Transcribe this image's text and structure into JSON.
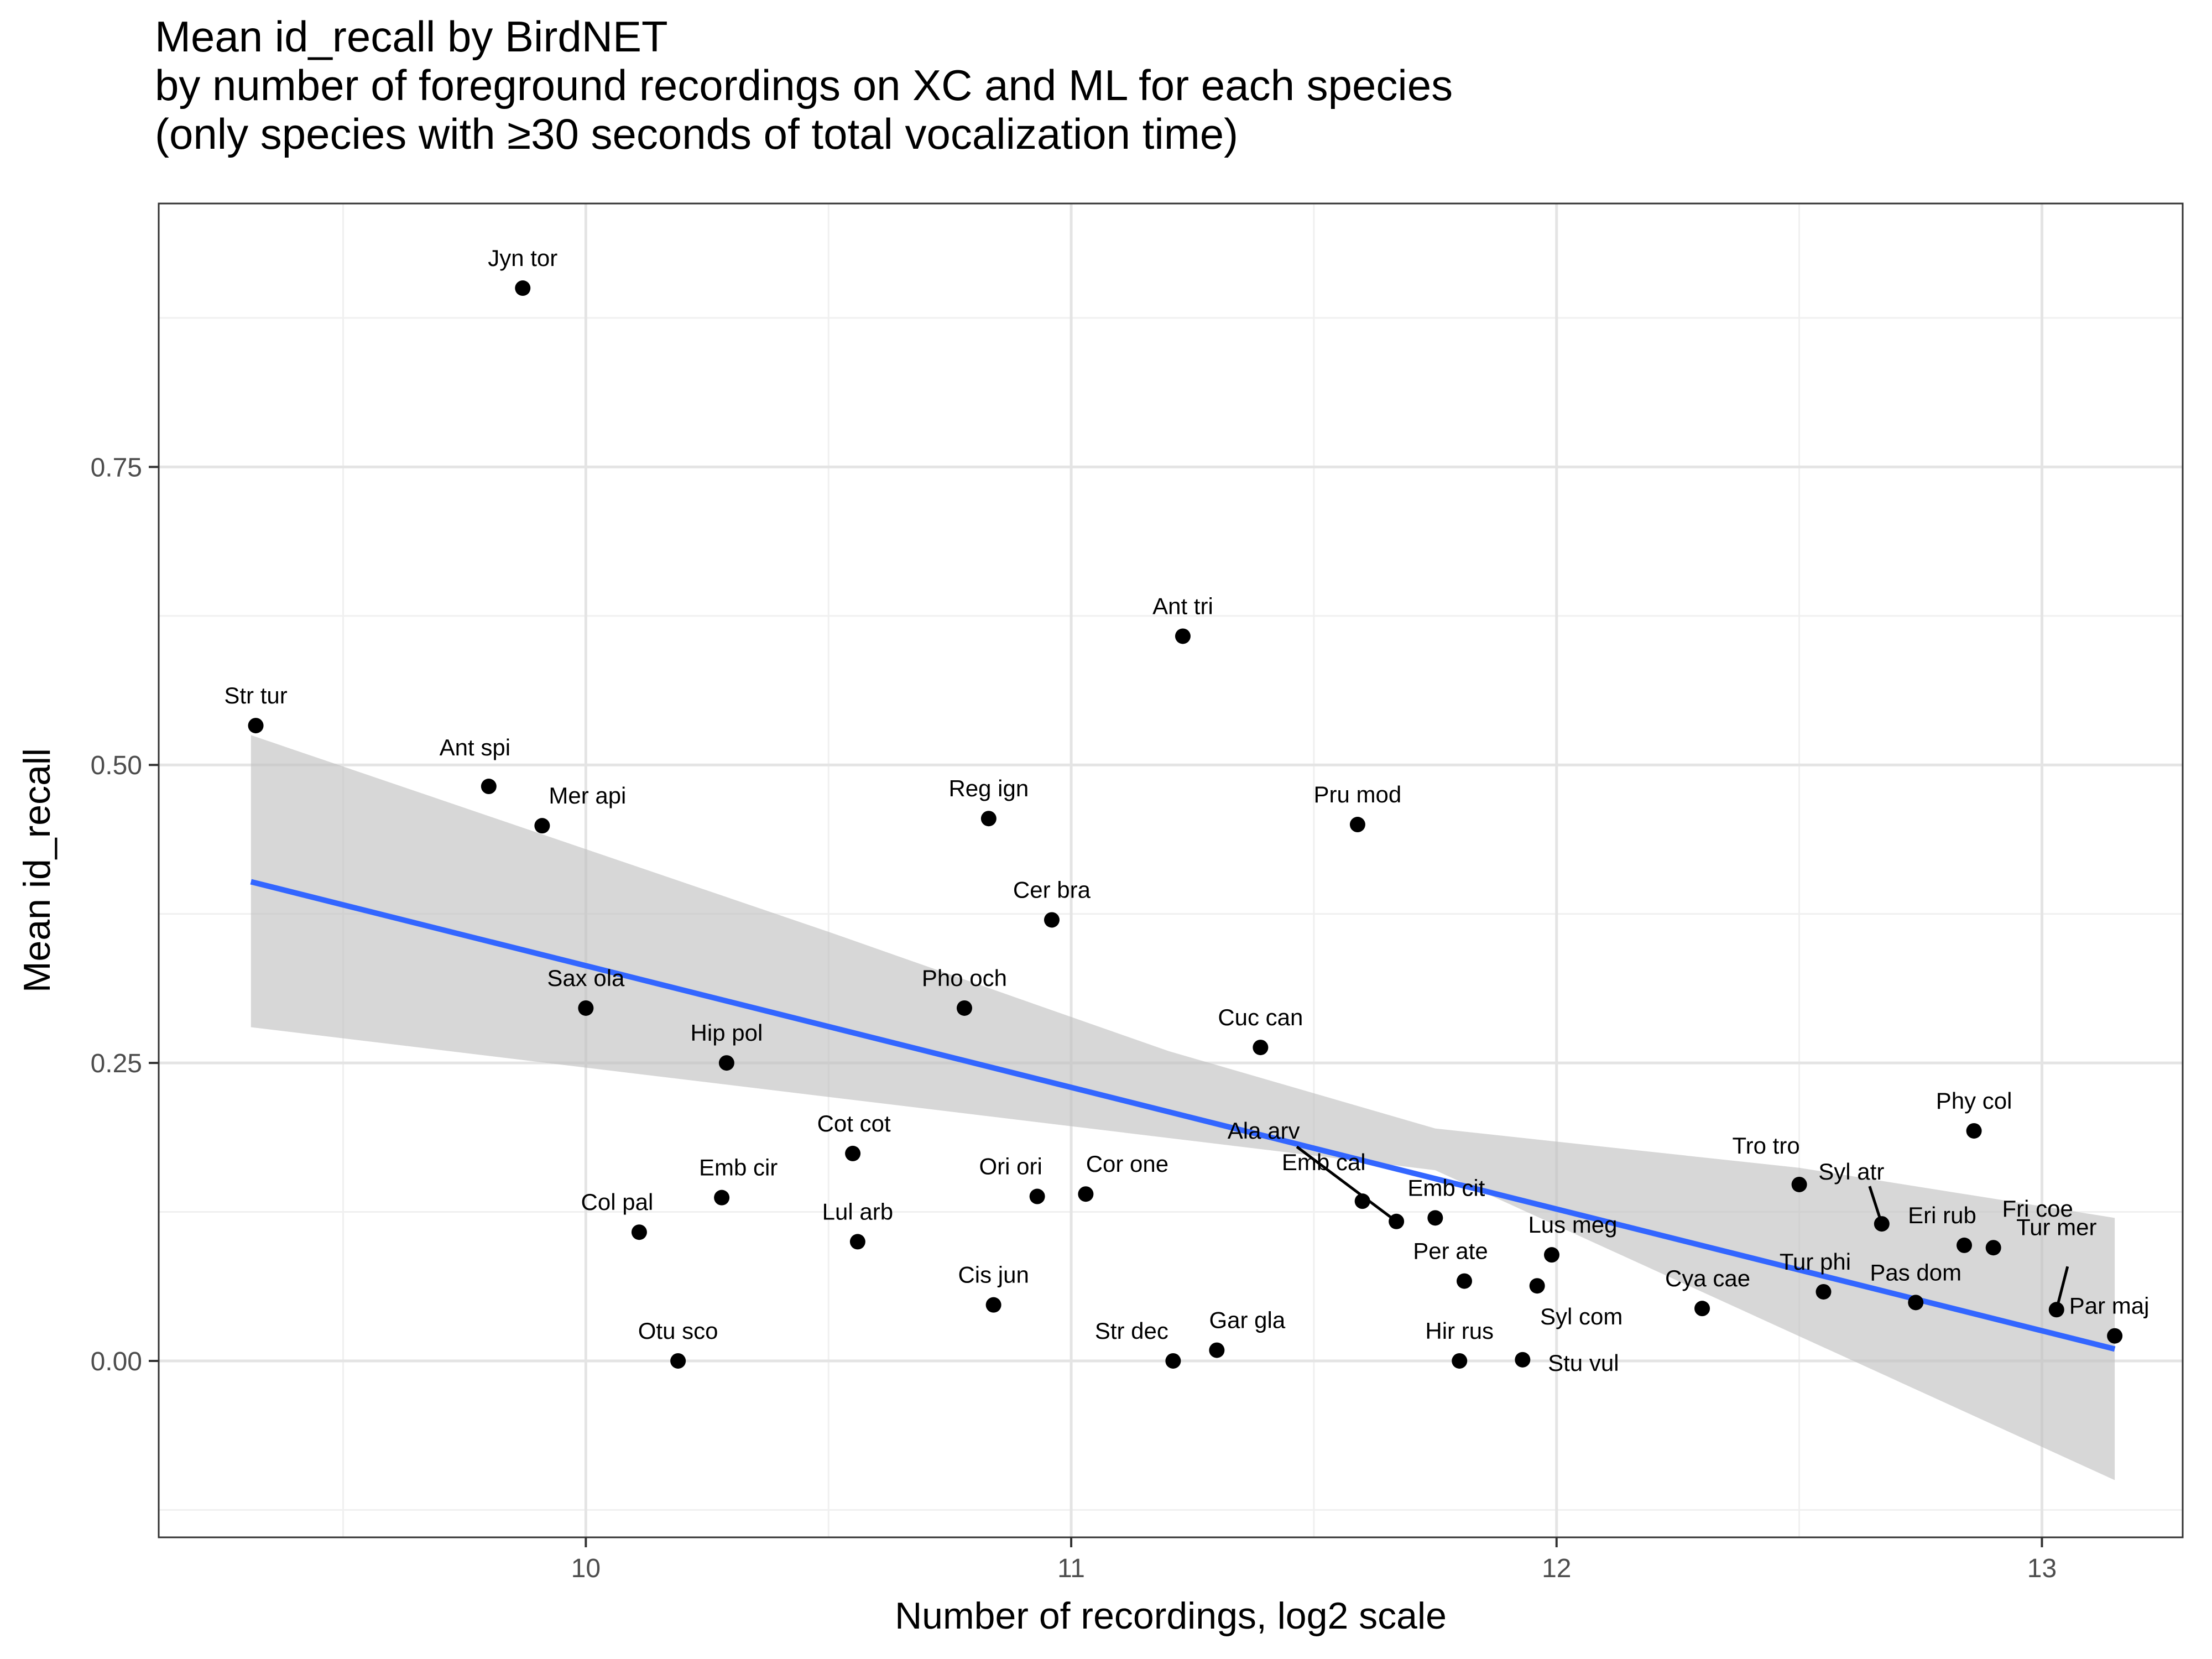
{
  "chart_data": {
    "type": "scatter",
    "title_lines": [
      "Mean id_recall by BirdNET",
      "by number of foreground recordings on XC and ML for each species",
      "(only species with ≥30 seconds of total vocalization time)"
    ],
    "xlabel": "Number of recordings, log2 scale",
    "ylabel": "Mean id_recall",
    "x_ticks": [
      10,
      11,
      12,
      13
    ],
    "x_tick_labels": [
      "10",
      "11",
      "12",
      "13"
    ],
    "y_ticks": [
      0,
      0.25,
      0.5,
      0.75
    ],
    "y_tick_labels": [
      "0.00",
      "0.25",
      "0.50",
      "0.75"
    ],
    "xlim": [
      9.12,
      13.29
    ],
    "ylim": [
      -0.148,
      0.971
    ],
    "grid": true,
    "smooth": {
      "method": "linear",
      "line": [
        [
          9.31,
          0.402
        ],
        [
          13.15,
          0.01
        ]
      ],
      "band_lower": [
        [
          9.31,
          0.28
        ],
        [
          11.75,
          0.16
        ],
        [
          13.15,
          -0.1
        ]
      ],
      "band_upper": [
        [
          9.31,
          0.525
        ],
        [
          10.5,
          0.36
        ],
        [
          11.2,
          0.26
        ],
        [
          11.75,
          0.195
        ],
        [
          12.5,
          0.162
        ],
        [
          13.15,
          0.12
        ]
      ],
      "colors": {
        "line": "#3366ff",
        "band": "#bebebe",
        "points": "#000000"
      }
    },
    "points": [
      {
        "label": "Jyn tor",
        "x": 9.87,
        "y": 0.9
      },
      {
        "label": "Ant tri",
        "x": 11.23,
        "y": 0.608
      },
      {
        "label": "Str tur",
        "x": 9.32,
        "y": 0.533
      },
      {
        "label": "Ant spi",
        "x": 9.8,
        "y": 0.482
      },
      {
        "label": "Mer api",
        "x": 9.91,
        "y": 0.449
      },
      {
        "label": "Reg ign",
        "x": 10.83,
        "y": 0.455
      },
      {
        "label": "Pru mod",
        "x": 11.59,
        "y": 0.45
      },
      {
        "label": "Cer bra",
        "x": 10.96,
        "y": 0.37
      },
      {
        "label": "Sax ola",
        "x": 10.0,
        "y": 0.296
      },
      {
        "label": "Pho och",
        "x": 10.78,
        "y": 0.296
      },
      {
        "label": "Cuc can",
        "x": 11.39,
        "y": 0.263
      },
      {
        "label": "Hip pol",
        "x": 10.29,
        "y": 0.25
      },
      {
        "label": "Phy col",
        "x": 12.86,
        "y": 0.193
      },
      {
        "label": "Cot cot",
        "x": 10.55,
        "y": 0.174
      },
      {
        "label": "Tro tro",
        "x": 12.5,
        "y": 0.148
      },
      {
        "label": "Ala arv",
        "x": 11.67,
        "y": 0.117
      },
      {
        "label": "Emb cir",
        "x": 10.28,
        "y": 0.137
      },
      {
        "label": "Ori ori",
        "x": 10.93,
        "y": 0.138
      },
      {
        "label": "Cor one",
        "x": 11.03,
        "y": 0.14
      },
      {
        "label": "Emb cal",
        "x": 11.6,
        "y": 0.134
      },
      {
        "label": "Emb cit",
        "x": 11.75,
        "y": 0.12
      },
      {
        "label": "Syl atr",
        "x": 12.67,
        "y": 0.115
      },
      {
        "label": "Col pal",
        "x": 10.11,
        "y": 0.108
      },
      {
        "label": "Lul arb",
        "x": 10.56,
        "y": 0.1
      },
      {
        "label": "Eri rub",
        "x": 12.84,
        "y": 0.097
      },
      {
        "label": "Fri coe",
        "x": 12.9,
        "y": 0.095
      },
      {
        "label": "Lus meg",
        "x": 11.99,
        "y": 0.089
      },
      {
        "label": "Per ate",
        "x": 11.81,
        "y": 0.067
      },
      {
        "label": "Syl com",
        "x": 11.96,
        "y": 0.063
      },
      {
        "label": "Tur phi",
        "x": 12.55,
        "y": 0.058
      },
      {
        "label": "Pas dom",
        "x": 12.74,
        "y": 0.049
      },
      {
        "label": "Cis jun",
        "x": 10.84,
        "y": 0.047
      },
      {
        "label": "Cya cae",
        "x": 12.3,
        "y": 0.044
      },
      {
        "label": "Tur mer",
        "x": 13.03,
        "y": 0.043
      },
      {
        "label": "Par maj",
        "x": 13.15,
        "y": 0.021
      },
      {
        "label": "Gar gla",
        "x": 11.3,
        "y": 0.009
      },
      {
        "label": "Otu sco",
        "x": 10.19,
        "y": 0.0
      },
      {
        "label": "Str dec",
        "x": 11.21,
        "y": 0.0
      },
      {
        "label": "Hir rus",
        "x": 11.8,
        "y": 0.0
      },
      {
        "label": "Stu vul",
        "x": 11.93,
        "y": 0.001
      }
    ]
  }
}
